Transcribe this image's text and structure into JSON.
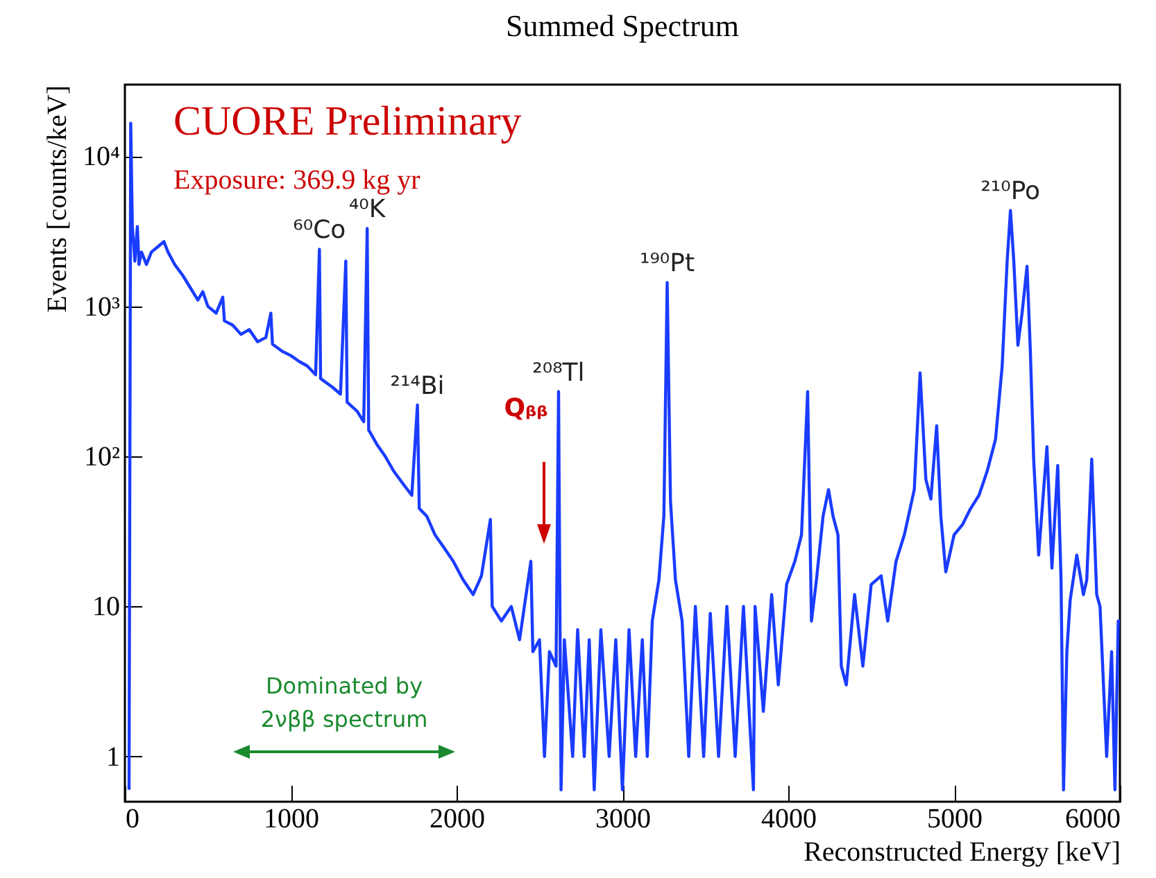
{
  "chart_data": {
    "type": "line",
    "title": "Summed Spectrum",
    "xlabel": "Reconstructed Energy [keV]",
    "ylabel": "Events [counts/keV]",
    "log": "y",
    "grid": false,
    "marker": "none",
    "line_style": "solid",
    "xlim": [
      0,
      6000
    ],
    "xticks": [
      0,
      1000,
      2000,
      3000,
      4000,
      5000,
      6000
    ],
    "ylim": [
      0.5,
      30000
    ],
    "yticks": [
      1,
      10,
      {
        "value": 100,
        "label": "10²"
      },
      {
        "value": 1000,
        "label": "10³"
      },
      {
        "value": 10000,
        "label": "10⁴"
      }
    ],
    "annotations": [
      "CUORE Preliminary",
      "Exposure: 369.9 kg yr",
      "Qᵦᵦ",
      "Dominated by\n2νββ spectrum",
      {
        "text": "⁶⁰Co",
        "x": 1173,
        "y": 2400
      },
      {
        "text": "⁴⁰K",
        "x": 1461,
        "y": 3300
      },
      {
        "text": "²¹⁴Bi",
        "x": 1764,
        "y": 220
      },
      {
        "text": "²⁰⁸Tl",
        "x": 2615,
        "y": 270
      },
      {
        "text": "¹⁹⁰Pt",
        "x": 3270,
        "y": 1440
      },
      {
        "text": "²¹⁰Po",
        "x": 5340,
        "y": 4350
      }
    ],
    "series": [
      {
        "color": "#1a3cff",
        "x": [
          25,
          35,
          45,
          60,
          75,
          85,
          100,
          130,
          160,
          200,
          235,
          260,
          300,
          350,
          400,
          440,
          470,
          500,
          550,
          590,
          600,
          650,
          700,
          750,
          800,
          850,
          880,
          890,
          950,
          1000,
          1050,
          1100,
          1150,
          1173,
          1180,
          1250,
          1300,
          1332,
          1340,
          1400,
          1440,
          1461,
          1470,
          1520,
          1570,
          1620,
          1680,
          1730,
          1764,
          1775,
          1820,
          1870,
          1920,
          1980,
          2040,
          2100,
          2150,
          2204,
          2215,
          2270,
          2330,
          2380,
          2448,
          2460,
          2500,
          2530,
          2560,
          2600,
          2615,
          2630,
          2650,
          2700,
          2730,
          2770,
          2800,
          2830,
          2870,
          2920,
          2960,
          3000,
          3040,
          3080,
          3120,
          3150,
          3180,
          3220,
          3250,
          3270,
          3290,
          3320,
          3360,
          3400,
          3440,
          3490,
          3530,
          3580,
          3630,
          3680,
          3730,
          3790,
          3800,
          3850,
          3900,
          3940,
          3990,
          4040,
          4080,
          4117,
          4140,
          4170,
          4210,
          4243,
          4270,
          4300,
          4320,
          4350,
          4400,
          4450,
          4500,
          4560,
          4600,
          4650,
          4700,
          4760,
          4795,
          4830,
          4860,
          4895,
          4920,
          4950,
          5000,
          5050,
          5100,
          5150,
          5200,
          5250,
          5290,
          5320,
          5340,
          5360,
          5385,
          5410,
          5440,
          5460,
          5480,
          5510,
          5540,
          5560,
          5590,
          5625,
          5645,
          5660,
          5680,
          5700,
          5740,
          5780,
          5800,
          5830,
          5860,
          5880,
          5920,
          5950,
          5970,
          5990,
          6000
        ],
        "values": [
          0.6,
          16600,
          3400,
          2000,
          3400,
          1900,
          2300,
          1900,
          2300,
          2500,
          2700,
          2300,
          1900,
          1600,
          1300,
          1100,
          1250,
          1000,
          900,
          1150,
          800,
          750,
          650,
          700,
          580,
          620,
          900,
          560,
          500,
          470,
          430,
          400,
          350,
          2400,
          330,
          290,
          260,
          2000,
          230,
          200,
          170,
          3300,
          150,
          120,
          100,
          80,
          65,
          55,
          220,
          45,
          40,
          30,
          25,
          20,
          15,
          12,
          16,
          38,
          10,
          8,
          10,
          6,
          20,
          5,
          6,
          1,
          5,
          4,
          270,
          0.6,
          6,
          1,
          7,
          1,
          6,
          0.6,
          7,
          1,
          6,
          0.6,
          7,
          1,
          6,
          1,
          8,
          15,
          40,
          1440,
          50,
          15,
          8,
          1,
          10,
          1,
          9,
          1,
          10,
          1,
          10,
          0.6,
          10,
          2,
          12,
          3,
          14,
          20,
          30,
          270,
          8,
          15,
          40,
          60,
          40,
          30,
          4,
          3,
          12,
          4,
          14,
          16,
          8,
          20,
          30,
          60,
          360,
          70,
          52,
          160,
          40,
          17,
          30,
          35,
          45,
          55,
          80,
          130,
          400,
          2000,
          4350,
          2000,
          550,
          900,
          1850,
          500,
          95,
          22,
          60,
          116,
          18,
          87,
          15,
          0.6,
          5,
          11,
          22,
          12,
          15,
          96,
          12,
          10,
          1,
          5,
          0.6,
          8,
          8
        ]
      }
    ]
  }
}
